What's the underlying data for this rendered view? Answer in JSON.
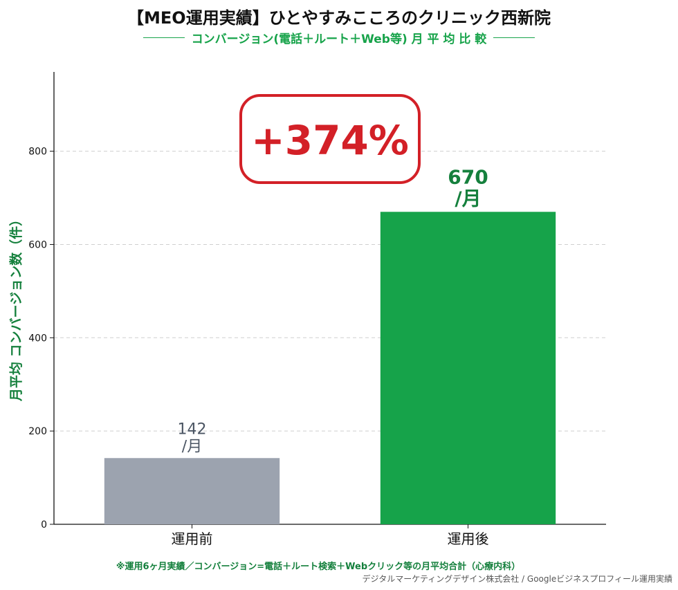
{
  "header": {
    "title": "【MEO運用実績】ひとやすみこころのクリニック西新院",
    "subtitle": "コンバージョン(電話＋ルート＋Web等) 月 平 均 比 較"
  },
  "chart_data": {
    "type": "bar",
    "title": "【MEO運用実績】ひとやすみこころのクリニック西新院",
    "subtitle": "コンバージョン(電話＋ルート＋Web等) 月 平 均 比 較",
    "ylabel": "月平均 コンバージョン数（件）",
    "xlabel": "",
    "categories": [
      "運用前",
      "運用後"
    ],
    "values": [
      142,
      670
    ],
    "value_labels": [
      [
        "142",
        "/月"
      ],
      [
        "670",
        "/月"
      ]
    ],
    "bar_colors": [
      "#9ca3af",
      "#16a34a"
    ],
    "label_colors": [
      "#4b5563",
      "#15803d"
    ],
    "ylim": [
      0,
      970
    ],
    "yticks": [
      0,
      200,
      400,
      600,
      800
    ],
    "grid": true,
    "annotation": "+374%",
    "annotation_color": "#d32027"
  },
  "footer": {
    "note": "※運用6ヶ月実績／コンバージョン=電話＋ルート検索＋Webクリック等の月平均合計（心療内科）",
    "credit": "デジタルマーケティングデザイン株式会社 / Googleビジネスプロフィール運用実績"
  }
}
